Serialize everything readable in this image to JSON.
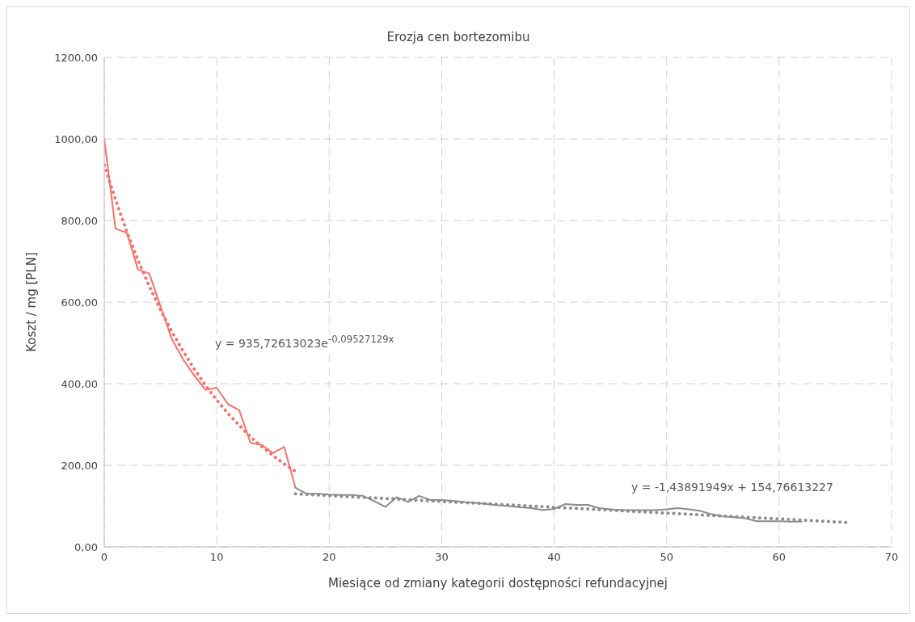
{
  "chart_data": {
    "type": "line",
    "title": "Erozja cen bortezomibu",
    "xlabel": "Miesiące od zmiany kategorii dostępności refundacyjnej",
    "ylabel": "Koszt / mg [PLN]",
    "xlim": [
      0,
      70
    ],
    "xticks": [
      0,
      10,
      20,
      30,
      40,
      50,
      60,
      70
    ],
    "ylim": [
      0,
      1200
    ],
    "yticks": [
      {
        "value": 0,
        "label": "0,00"
      },
      {
        "value": 200,
        "label": "200,00"
      },
      {
        "value": 400,
        "label": "400,00"
      },
      {
        "value": 600,
        "label": "600,00"
      },
      {
        "value": 800,
        "label": "800,00"
      },
      {
        "value": 1000,
        "label": "1000,00"
      },
      {
        "value": 1200,
        "label": "1200,00"
      }
    ],
    "grid": true,
    "legend": false,
    "series": [
      {
        "color": "#f4726a",
        "line_style": "solid",
        "x": [
          0,
          1,
          2,
          3,
          4,
          5,
          6,
          7,
          8,
          9,
          10,
          11,
          12,
          13,
          14,
          15,
          16,
          17
        ],
        "values": [
          1000,
          780,
          770,
          680,
          670,
          590,
          510,
          460,
          420,
          385,
          390,
          350,
          335,
          255,
          250,
          230,
          245,
          145
        ]
      },
      {
        "color": "#8c8c8c",
        "line_style": "solid",
        "x": [
          17,
          18,
          19,
          20,
          21,
          22,
          23,
          24,
          25,
          26,
          27,
          28,
          29,
          30,
          31,
          32,
          33,
          34,
          35,
          36,
          37,
          38,
          39,
          40,
          41,
          42,
          43,
          44,
          45,
          46,
          47,
          48,
          49,
          50,
          51,
          52,
          53,
          54,
          55,
          56,
          57,
          58,
          59,
          60,
          61,
          62
        ],
        "values": [
          145,
          130,
          130,
          128,
          127,
          127,
          125,
          112,
          98,
          122,
          110,
          125,
          115,
          115,
          113,
          110,
          108,
          105,
          102,
          100,
          97,
          95,
          90,
          93,
          105,
          103,
          103,
          95,
          92,
          90,
          90,
          90,
          90,
          92,
          95,
          92,
          88,
          80,
          75,
          73,
          70,
          63,
          63,
          63,
          62,
          62
        ]
      },
      {
        "color": "#f4726a",
        "line_style": "dotted",
        "x": [
          0,
          1,
          2,
          3,
          4,
          5,
          6,
          7,
          8,
          9,
          10,
          11,
          12,
          13,
          14,
          15,
          16,
          17
        ],
        "values": [
          936,
          851,
          773,
          703,
          639,
          581,
          528,
          480,
          436,
          396,
          360,
          327,
          298,
          270,
          246,
          224,
          203,
          185
        ]
      },
      {
        "color": "#8c8c8c",
        "line_style": "dotted",
        "x": [
          17,
          66
        ],
        "values": [
          130,
          60
        ]
      }
    ],
    "annotations": [
      "y = 935,72613023e$^{-0,09527129x}$",
      "y = -1,43891949x + 154,76613227"
    ]
  }
}
